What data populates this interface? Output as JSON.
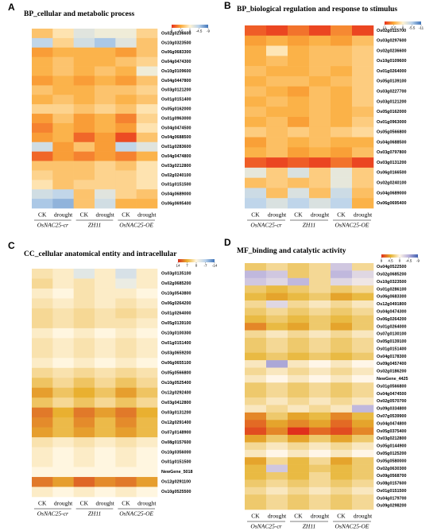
{
  "chart_data": [
    {
      "type": "heatmap",
      "label": "A",
      "title": "BP_cellular and metabolic process",
      "zlim": [
        -9,
        9
      ],
      "legend_ticks": [
        9,
        4.5,
        0,
        -4.5,
        -9
      ],
      "colors": [
        "#3f74b8",
        "#b9d2ec",
        "#fff3d2",
        "#fbab3a",
        "#e8301c"
      ],
      "columns": [
        "CK",
        "drought",
        "CK",
        "drought",
        "CK",
        "drought"
      ],
      "groups": [
        "OsNAC25-cr",
        "ZH11",
        "OsNAC25-OE"
      ],
      "rows": [
        "Os02g0236600",
        "Os10g0323500",
        "Os06g0683300",
        "Os04g0474300",
        "Os10g0109600",
        "Os04g0447800",
        "Os03g0121200",
        "Os01g0151400",
        "Os05g0162000",
        "Os01g0963000",
        "Os04g0474500",
        "Os04g0688500",
        "Os01g0283600",
        "Os04g0474800",
        "Os03g0212800",
        "Os02g0240100",
        "Os01g0151500",
        "Os04g0689000",
        "Os06g0695400"
      ],
      "values": [
        [
          3,
          1,
          -2,
          -1,
          -1,
          2
        ],
        [
          -4,
          2,
          -3,
          -5,
          -2,
          3
        ],
        [
          5,
          4,
          4,
          4,
          5,
          3
        ],
        [
          4,
          3,
          4,
          4,
          3,
          2
        ],
        [
          4,
          3,
          4,
          3,
          4,
          -1
        ],
        [
          5,
          4,
          5,
          4,
          5,
          3
        ],
        [
          3,
          4,
          4,
          3,
          3,
          2
        ],
        [
          4,
          3,
          4,
          3,
          4,
          3
        ],
        [
          2,
          2,
          3,
          2,
          3,
          1
        ],
        [
          5,
          3,
          5,
          4,
          6,
          2
        ],
        [
          6,
          4,
          5,
          4,
          5,
          1
        ],
        [
          5,
          4,
          7,
          5,
          8,
          3
        ],
        [
          -3,
          5,
          3,
          5,
          -4,
          -2
        ],
        [
          7,
          5,
          6,
          5,
          6,
          4
        ],
        [
          3,
          3,
          3,
          2,
          3,
          1
        ],
        [
          2,
          3,
          3,
          2,
          2,
          1
        ],
        [
          1,
          3,
          2,
          2,
          2,
          1
        ],
        [
          -3,
          -4,
          3,
          -2,
          2,
          3
        ],
        [
          -5,
          -6,
          3,
          -3,
          4,
          4
        ]
      ]
    },
    {
      "type": "heatmap",
      "label": "B",
      "title": "BP_biological regulation and response to stimulus",
      "zlim": [
        -11,
        11
      ],
      "legend_ticks": [
        11,
        5.5,
        0,
        -5.5,
        -11
      ],
      "colors": [
        "#3f74b8",
        "#b9d2ec",
        "#fff3d2",
        "#fbab3a",
        "#e8301c"
      ],
      "columns": [
        "CK",
        "drought",
        "CK",
        "drought",
        "CK",
        "drought"
      ],
      "groups": [
        "OsNAC25-cr",
        "ZH11",
        "OsNAC25-OE"
      ],
      "rows": [
        "Os02g0115700",
        "Os03g0297600",
        "Os02g0236600",
        "Os10g0109600",
        "Os01g0264000",
        "Os05g0139100",
        "Os03g0227700",
        "Os03g0121200",
        "Os05g0162000",
        "Os01g0963000",
        "Os05g0566800",
        "Os04g0688500",
        "Os03g0797800",
        "Os03g0131200",
        "Os06g0166500",
        "Os02g0240100",
        "Os04g0689000",
        "Os06g0695400"
      ],
      "values": [
        [
          9,
          10,
          8,
          10,
          7,
          10
        ],
        [
          6,
          5,
          6,
          5,
          6,
          4
        ],
        [
          5,
          1,
          5,
          4,
          4,
          3
        ],
        [
          5,
          4,
          5,
          4,
          4,
          3
        ],
        [
          4,
          5,
          5,
          4,
          5,
          3
        ],
        [
          5,
          4,
          4,
          5,
          4,
          3
        ],
        [
          4,
          5,
          6,
          4,
          5,
          3
        ],
        [
          5,
          4,
          5,
          4,
          5,
          3
        ],
        [
          4,
          5,
          5,
          4,
          5,
          4
        ],
        [
          5,
          4,
          6,
          4,
          5,
          3
        ],
        [
          3,
          4,
          3,
          4,
          3,
          2
        ],
        [
          6,
          4,
          5,
          4,
          5,
          5
        ],
        [
          5,
          4,
          6,
          5,
          6,
          4
        ],
        [
          9,
          10,
          9,
          10,
          8,
          10
        ],
        [
          -2,
          3,
          -3,
          3,
          -2,
          3
        ],
        [
          4,
          3,
          4,
          3,
          -2,
          3
        ],
        [
          -4,
          4,
          -3,
          4,
          -4,
          4
        ],
        [
          -5,
          -3,
          -5,
          -3,
          -5,
          5
        ]
      ]
    },
    {
      "type": "heatmap",
      "label": "C",
      "title": "CC_cellular anatomical entity and intracellular",
      "zlim": [
        -14,
        14
      ],
      "legend_ticks": [
        14,
        7,
        0,
        -7,
        -14
      ],
      "colors": [
        "#3f74b8",
        "#b9d2ec",
        "#fff6e0",
        "#e9b030",
        "#d7301f"
      ],
      "columns": [
        "CK",
        "drought",
        "CK",
        "drought",
        "CK",
        "drought"
      ],
      "groups": [
        "OsNAC25-cr",
        "ZH11",
        "OsNAC25-OE"
      ],
      "rows": [
        "Os03g0135100",
        "Os02g0685200",
        "Os10g0543800",
        "Os06g0264200",
        "Os01g0264000",
        "Os05g0139100",
        "Os10g0100300",
        "Os01g0151400",
        "Os03g0659200",
        "Os06g0655100",
        "Os05g0566800",
        "Os10g0525400",
        "Os12g0292400",
        "Os03g0412800",
        "Os03g0131200",
        "Os12g0291400",
        "Os07g0148900",
        "Os08g0157600",
        "Os10g0356000",
        "Os01g0151500",
        "NewGene_5018",
        "Os12g0291100",
        "Os10g0525500"
      ],
      "values": [
        [
          2,
          1,
          -3,
          1,
          -4,
          1
        ],
        [
          3,
          1,
          2,
          1,
          -2,
          1
        ],
        [
          1,
          0,
          2,
          1,
          1,
          0
        ],
        [
          2,
          1,
          2,
          1,
          2,
          1
        ],
        [
          3,
          2,
          3,
          2,
          3,
          2
        ],
        [
          3,
          2,
          3,
          2,
          2,
          1
        ],
        [
          1,
          0,
          1,
          0,
          1,
          0
        ],
        [
          2,
          1,
          2,
          1,
          2,
          1
        ],
        [
          2,
          1,
          2,
          1,
          2,
          1
        ],
        [
          1,
          0,
          1,
          0,
          1,
          0
        ],
        [
          3,
          2,
          3,
          2,
          3,
          2
        ],
        [
          5,
          3,
          5,
          3,
          5,
          3
        ],
        [
          8,
          5,
          7,
          5,
          8,
          5
        ],
        [
          5,
          3,
          5,
          3,
          5,
          3
        ],
        [
          10,
          7,
          10,
          8,
          10,
          7
        ],
        [
          9,
          6,
          9,
          6,
          9,
          6
        ],
        [
          8,
          6,
          8,
          6,
          8,
          6
        ],
        [
          2,
          1,
          2,
          1,
          2,
          1
        ],
        [
          1,
          0,
          1,
          0,
          1,
          0
        ],
        [
          1,
          0,
          1,
          0,
          1,
          0
        ],
        [
          0,
          0,
          0,
          0,
          0,
          0
        ],
        [
          10,
          8,
          11,
          9,
          10,
          8
        ],
        [
          1,
          0,
          1,
          0,
          1,
          0
        ]
      ]
    },
    {
      "type": "heatmap",
      "label": "D",
      "title": "MF_binding and catalytic activity",
      "zlim": [
        -9,
        9
      ],
      "legend_ticks": [
        9,
        4.5,
        0,
        -4.5,
        -9
      ],
      "colors": [
        "#3f5fb0",
        "#b8b0dc",
        "#fff6e8",
        "#e6b22e",
        "#e0301c"
      ],
      "columns": [
        "CK",
        "drought",
        "CK",
        "drought",
        "CK",
        "drought"
      ],
      "groups": [
        "OsNAC25-cr",
        "ZH11",
        "OsNAC25-OE"
      ],
      "rows": [
        "Os04g0522500",
        "Os02g0685200",
        "Os10g0323500",
        "Os01g0286100",
        "Os06g0683300",
        "Os12g0491800",
        "Os04g0474300",
        "Os06g0264200",
        "Os01g0264000",
        "Os07g0130100",
        "Os05g0139100",
        "Os01g0151400",
        "Os04g0178300",
        "Os09g0457400",
        "Os02g0186200",
        "NewGene_4425",
        "Os01g0566800",
        "Os04g0474500",
        "Os02g0570700",
        "Os09g0334800",
        "Os07g0539900",
        "Os04g0474800",
        "Os05g0375400",
        "Os03g0212800",
        "Os05g0144900",
        "Os05g0125200",
        "Os05g0580000",
        "Os02g0630300",
        "Os09g0568700",
        "Os08g0157600",
        "Os01g0151500",
        "Os04g0179700",
        "Os09g0298200"
      ],
      "values": [
        [
          3,
          2,
          3,
          2,
          -3,
          2
        ],
        [
          -4,
          -3,
          3,
          2,
          -4,
          -2
        ],
        [
          -3,
          -2,
          -4,
          2,
          -2,
          -1
        ],
        [
          3,
          4,
          3,
          2,
          3,
          2
        ],
        [
          4,
          5,
          4,
          3,
          5,
          4
        ],
        [
          2,
          -2,
          2,
          1,
          2,
          1
        ],
        [
          3,
          2,
          3,
          2,
          3,
          2
        ],
        [
          4,
          3,
          4,
          3,
          4,
          3
        ],
        [
          6,
          4,
          5,
          3,
          5,
          3
        ],
        [
          2,
          1,
          2,
          1,
          2,
          1
        ],
        [
          3,
          2,
          3,
          2,
          3,
          2
        ],
        [
          3,
          2,
          3,
          2,
          3,
          2
        ],
        [
          4,
          3,
          4,
          3,
          4,
          3
        ],
        [
          1,
          -5,
          1,
          0,
          1,
          0
        ],
        [
          2,
          1,
          2,
          1,
          2,
          1
        ],
        [
          1,
          0,
          1,
          0,
          1,
          0
        ],
        [
          3,
          2,
          3,
          2,
          3,
          2
        ],
        [
          3,
          2,
          3,
          2,
          3,
          2
        ],
        [
          2,
          1,
          2,
          1,
          2,
          1
        ],
        [
          1,
          2,
          1,
          2,
          1,
          -4
        ],
        [
          6,
          3,
          5,
          4,
          6,
          4
        ],
        [
          7,
          5,
          6,
          5,
          7,
          5
        ],
        [
          8,
          6,
          9,
          7,
          8,
          6
        ],
        [
          5,
          3,
          5,
          3,
          5,
          3
        ],
        [
          2,
          1,
          2,
          1,
          2,
          1
        ],
        [
          1,
          0,
          1,
          0,
          1,
          0
        ],
        [
          5,
          2,
          4,
          2,
          5,
          3
        ],
        [
          4,
          -3,
          4,
          3,
          4,
          3
        ],
        [
          4,
          3,
          4,
          2,
          4,
          3
        ],
        [
          3,
          2,
          3,
          2,
          3,
          2
        ],
        [
          2,
          1,
          2,
          1,
          2,
          1
        ],
        [
          3,
          2,
          3,
          2,
          3,
          2
        ],
        [
          3,
          2,
          3,
          2,
          3,
          2
        ]
      ]
    }
  ]
}
